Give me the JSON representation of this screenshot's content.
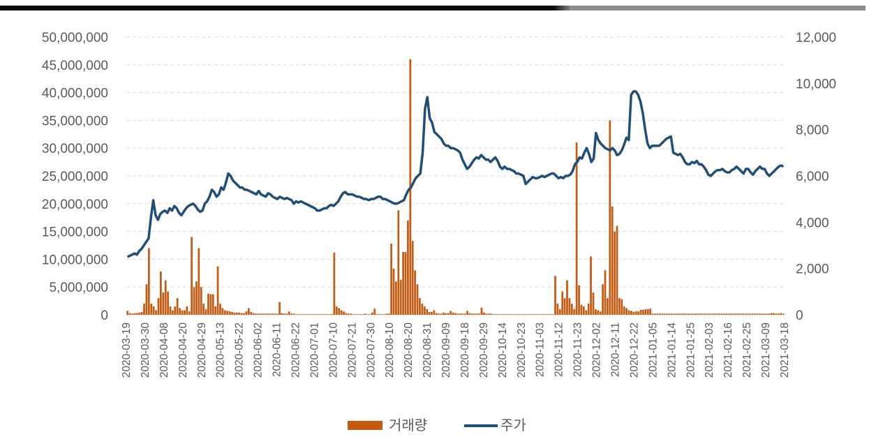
{
  "colors": {
    "volume_bar": "#C55A11",
    "price_line": "#1F4E79",
    "gridline": "#D9D9D9",
    "tick_text": "#595959",
    "top_rule_dark": "#0D0D0D",
    "top_rule_light": "#8C8C8C"
  },
  "chart_data": {
    "type": "bar+line",
    "title": "",
    "grid": "horizontal dashed",
    "legend_position": "bottom-center",
    "left_axis": {
      "ylim": [
        0,
        50000000
      ],
      "ticks": [
        "0",
        "5,000,000",
        "10,000,000",
        "15,000,000",
        "20,000,000",
        "25,000,000",
        "30,000,000",
        "35,000,000",
        "40,000,000",
        "45,000,000",
        "50,000,000"
      ]
    },
    "right_axis": {
      "ylim": [
        0,
        12000
      ],
      "ticks": [
        "0",
        "2,000",
        "4,000",
        "6,000",
        "8,000",
        "10,000",
        "12,000"
      ]
    },
    "x_tick_labels": [
      "2020-03-19",
      "2020-03-30",
      "2020-04-08",
      "2020-04-20",
      "2020-04-29",
      "2020-05-13",
      "2020-05-22",
      "2020-06-02",
      "2020-06-11",
      "2020-06-22",
      "2020-07-01",
      "2020-07-10",
      "2020-07-21",
      "2020-07-30",
      "2020-08-10",
      "2020-08-20",
      "2020-08-31",
      "2020-09-09",
      "2020-09-18",
      "2020-09-29",
      "2020-10-14",
      "2020-10-23",
      "2020-11-03",
      "2020-11-12",
      "2020-11-23",
      "2020-12-02",
      "2020-12-11",
      "2020-12-22",
      "2021-01-05",
      "2021-01-14",
      "2021-01-25",
      "2021-02-03",
      "2021-02-16",
      "2021-02-25",
      "2021-03-09",
      "2021-03-18"
    ],
    "series": [
      {
        "name": "거래량",
        "type": "bar",
        "axis": "left",
        "values": [
          700000,
          300000,
          200000,
          300000,
          300000,
          400000,
          500000,
          2000000,
          5500000,
          12000000,
          2000000,
          1500000,
          800000,
          3000000,
          7800000,
          4000000,
          6200000,
          4200000,
          1500000,
          800000,
          1500000,
          3000000,
          1200000,
          800000,
          800000,
          1500000,
          600000,
          14000000,
          5000000,
          6000000,
          12000000,
          5000000,
          2000000,
          1000000,
          3800000,
          3700000,
          3700000,
          1500000,
          8700000,
          2000000,
          1200000,
          800000,
          700000,
          600000,
          500000,
          400000,
          400000,
          400000,
          300000,
          300000,
          600000,
          1200000,
          500000,
          300000,
          200000,
          200000,
          200000,
          200000,
          200000,
          200000,
          200000,
          200000,
          200000,
          200000,
          2300000,
          300000,
          200000,
          200000,
          600000,
          200000,
          200000,
          100000,
          100000,
          100000,
          100000,
          100000,
          100000,
          100000,
          100000,
          100000,
          100000,
          100000,
          100000,
          100000,
          100000,
          100000,
          100000,
          11200000,
          1500000,
          1200000,
          800000,
          600000,
          300000,
          200000,
          200000,
          100000,
          100000,
          100000,
          100000,
          100000,
          200000,
          100000,
          100000,
          400000,
          1100000,
          100000,
          100000,
          100000,
          100000,
          200000,
          200000,
          12800000,
          8300000,
          6000000,
          18800000,
          6300000,
          11300000,
          11300000,
          17000000,
          46000000,
          13300000,
          8000000,
          5500000,
          3000000,
          2000000,
          1500000,
          1000000,
          500000,
          500000,
          800000,
          300000,
          200000,
          200000,
          400000,
          300000,
          300000,
          700000,
          400000,
          300000,
          200000,
          200000,
          200000,
          200000,
          700000,
          300000,
          200000,
          200000,
          200000,
          200000,
          1300000,
          400000,
          200000,
          200000,
          200000,
          100000,
          100000,
          100000,
          100000,
          100000,
          100000,
          100000,
          100000,
          100000,
          100000,
          100000,
          100000,
          100000,
          100000,
          100000,
          100000,
          100000,
          100000,
          100000,
          100000,
          100000,
          100000,
          100000,
          100000,
          100000,
          100000,
          7000000,
          2000000,
          1000000,
          4200000,
          3000000,
          6200000,
          3000000,
          2000000,
          1000000,
          31000000,
          5300000,
          1800000,
          1500000,
          800000,
          2000000,
          10500000,
          4000000,
          1000000,
          800000,
          600000,
          5500000,
          8000000,
          3000000,
          35000000,
          19500000,
          15000000,
          16000000,
          3000000,
          2800000,
          1500000,
          1200000,
          800000,
          700000,
          500000,
          600000,
          600000,
          900000,
          900000,
          1000000,
          1000000,
          1100000,
          200000,
          200000,
          200000,
          200000,
          200000,
          200000,
          200000,
          200000,
          200000,
          200000,
          200000,
          200000,
          200000,
          200000,
          200000,
          200000,
          200000,
          200000,
          200000,
          200000,
          200000,
          200000,
          200000,
          200000,
          200000,
          200000,
          200000,
          200000,
          200000,
          200000,
          200000,
          200000,
          200000,
          200000,
          200000,
          200000,
          200000,
          200000,
          200000,
          200000,
          200000,
          200000,
          200000,
          200000,
          200000,
          200000,
          200000,
          200000,
          200000,
          200000,
          300000,
          300000,
          200000,
          200000,
          300000,
          200000
        ]
      },
      {
        "name": "주가",
        "type": "line",
        "axis": "right",
        "values": [
          2500,
          2550,
          2600,
          2650,
          2600,
          2750,
          2850,
          3000,
          3150,
          3300,
          4200,
          4950,
          4300,
          4100,
          4350,
          4450,
          4500,
          4400,
          4600,
          4500,
          4700,
          4600,
          4400,
          4300,
          4450,
          4600,
          4700,
          4750,
          4800,
          4700,
          4550,
          4450,
          4500,
          4800,
          4900,
          5100,
          5400,
          5300,
          5100,
          5200,
          5500,
          5400,
          5700,
          6100,
          6000,
          5800,
          5700,
          5600,
          5500,
          5500,
          5400,
          5400,
          5350,
          5300,
          5250,
          5200,
          5350,
          5200,
          5150,
          5100,
          5250,
          5200,
          5100,
          5050,
          5000,
          5100,
          5050,
          5000,
          5050,
          5000,
          4950,
          4800,
          4900,
          4850,
          4900,
          4850,
          4800,
          4750,
          4700,
          4650,
          4600,
          4500,
          4500,
          4550,
          4600,
          4600,
          4700,
          4750,
          4700,
          4800,
          4900,
          5100,
          5250,
          5300,
          5200,
          5200,
          5200,
          5150,
          5100,
          5100,
          5050,
          5000,
          5000,
          4950,
          5000,
          5000,
          5050,
          5100,
          5100,
          5000,
          5000,
          4950,
          4900,
          4850,
          4800,
          4800,
          4850,
          4900,
          4950,
          5200,
          5400,
          5500,
          5700,
          5900,
          6000,
          6100,
          7000,
          8900,
          9400,
          8500,
          8300,
          7900,
          7800,
          7700,
          7600,
          7400,
          7300,
          7300,
          7200,
          7200,
          7150,
          7100,
          7000,
          6700,
          6500,
          6300,
          6400,
          6550,
          6700,
          6800,
          6750,
          6900,
          6800,
          6700,
          6700,
          6600,
          6700,
          6800,
          6650,
          6400,
          6300,
          6400,
          6300,
          6300,
          6250,
          6200,
          6100,
          6100,
          6050,
          6000,
          5650,
          5750,
          5850,
          5950,
          5900,
          5900,
          5950,
          6000,
          5950,
          6000,
          6050,
          6100,
          6100,
          6000,
          5900,
          5950,
          5900,
          6000,
          6000,
          6050,
          6200,
          6500,
          6600,
          6800,
          6750,
          7000,
          7200,
          6950,
          6600,
          6750,
          7850,
          7550,
          7400,
          7300,
          7200,
          7150,
          7100,
          7200,
          7100,
          6900,
          6950,
          7100,
          7350,
          7650,
          7550,
          9500,
          9650,
          9650,
          9500,
          9200,
          8700,
          8000,
          7400,
          7200,
          7300,
          7300,
          7300,
          7300,
          7400,
          7500,
          7600,
          7650,
          7700,
          7000,
          6950,
          6900,
          6950,
          6800,
          6600,
          6500,
          6500,
          6600,
          6550,
          6650,
          6500,
          6500,
          6400,
          6250,
          6050,
          6000,
          6100,
          6200,
          6250,
          6250,
          6300,
          6200,
          6150,
          6150,
          6250,
          6300,
          6400,
          6300,
          6200,
          6100,
          6300,
          6300,
          6150,
          6050,
          6200,
          6300,
          6400,
          6300,
          6300,
          6100,
          6000,
          6100,
          6200,
          6300,
          6400,
          6450,
          6400
        ]
      }
    ]
  }
}
